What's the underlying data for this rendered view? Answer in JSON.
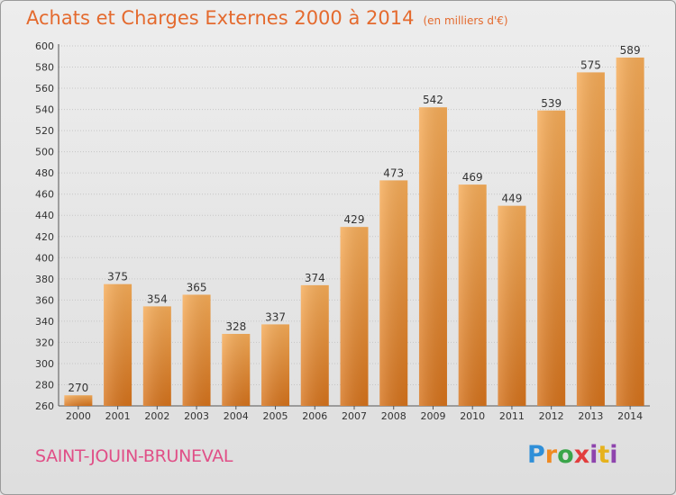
{
  "header": {
    "title": "Achats et Charges Externes 2000 à 2014",
    "subtitle": "(en milliers d'€)"
  },
  "footer": {
    "place": "SAINT-JOUIN-BRUNEVAL",
    "logo_text": "Proxiti"
  },
  "colors": {
    "bar_light": "#f4a64e",
    "bar_dark": "#d8761f",
    "title": "#e46a2e",
    "place": "#e04f87"
  },
  "chart_data": {
    "type": "bar",
    "title": "Achats et Charges Externes 2000 à 2014",
    "subtitle": "(en milliers d'€)",
    "categories": [
      "2000",
      "2001",
      "2002",
      "2003",
      "2004",
      "2005",
      "2006",
      "2007",
      "2008",
      "2009",
      "2010",
      "2011",
      "2012",
      "2013",
      "2014"
    ],
    "values": [
      270,
      375,
      354,
      365,
      328,
      337,
      374,
      429,
      473,
      542,
      469,
      449,
      539,
      575,
      589
    ],
    "ylim": [
      260,
      600
    ],
    "yticks": [
      260,
      280,
      300,
      320,
      340,
      360,
      380,
      400,
      420,
      440,
      460,
      480,
      500,
      520,
      540,
      560,
      580,
      600
    ],
    "grid": true,
    "xlabel": "",
    "ylabel": ""
  }
}
